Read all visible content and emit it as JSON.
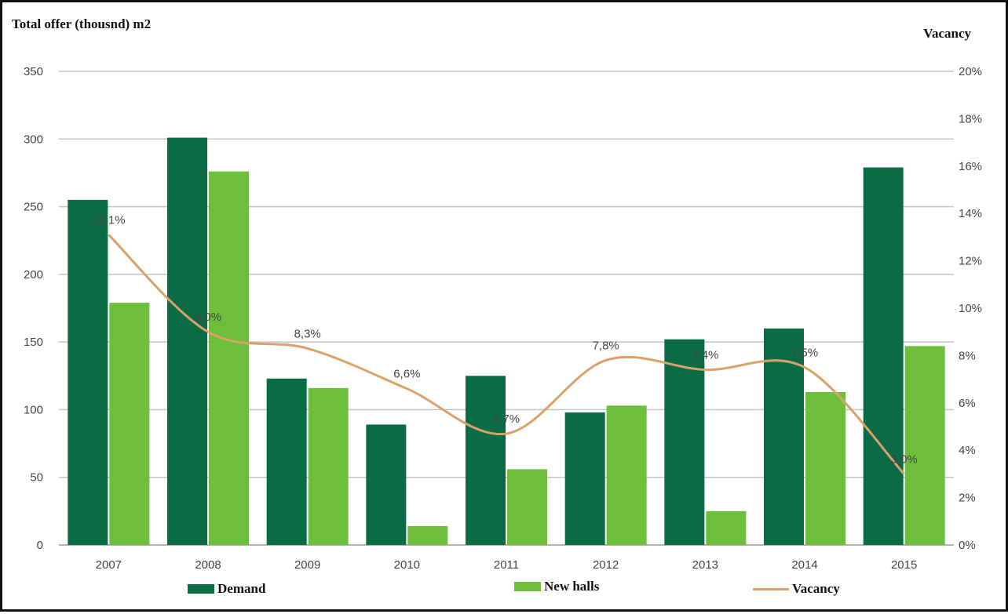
{
  "chart_data": {
    "type": "bar",
    "ylabel": "Total offer (thousnd) m2",
    "y2label": "Vacancy",
    "categories": [
      "2007",
      "2008",
      "2009",
      "2010",
      "2011",
      "2012",
      "2013",
      "2014",
      "2015"
    ],
    "ylim": [
      0,
      350
    ],
    "y_ticks": [
      "0",
      "50",
      "100",
      "150",
      "200",
      "250",
      "300",
      "350"
    ],
    "y2lim": [
      0,
      20
    ],
    "y2_ticks": [
      "0%",
      "2%",
      "4%",
      "6%",
      "8%",
      "10%",
      "12%",
      "14%",
      "16%",
      "18%",
      "20%"
    ],
    "grid": true,
    "legend_position": "bottom",
    "series": [
      {
        "name": "Demand",
        "type": "bar",
        "color": "#0b6b44",
        "values": [
          255,
          301,
          123,
          89,
          125,
          98,
          152,
          160,
          279
        ]
      },
      {
        "name": "New halls",
        "type": "bar",
        "color": "#6dbf3b",
        "values": [
          179,
          276,
          116,
          14,
          56,
          103,
          25,
          113,
          147
        ]
      },
      {
        "name": "Vacancy",
        "type": "line",
        "axis": "right",
        "color": "#d8a26a",
        "values": [
          13.1,
          9.0,
          8.3,
          6.6,
          4.7,
          7.8,
          7.4,
          7.5,
          3.0
        ],
        "labels": [
          "13,1%",
          "9,0%",
          "8,3%",
          "6,6%",
          "4,7%",
          "7,8%",
          "7,4%",
          "7,5%",
          "3,0%"
        ]
      }
    ]
  }
}
